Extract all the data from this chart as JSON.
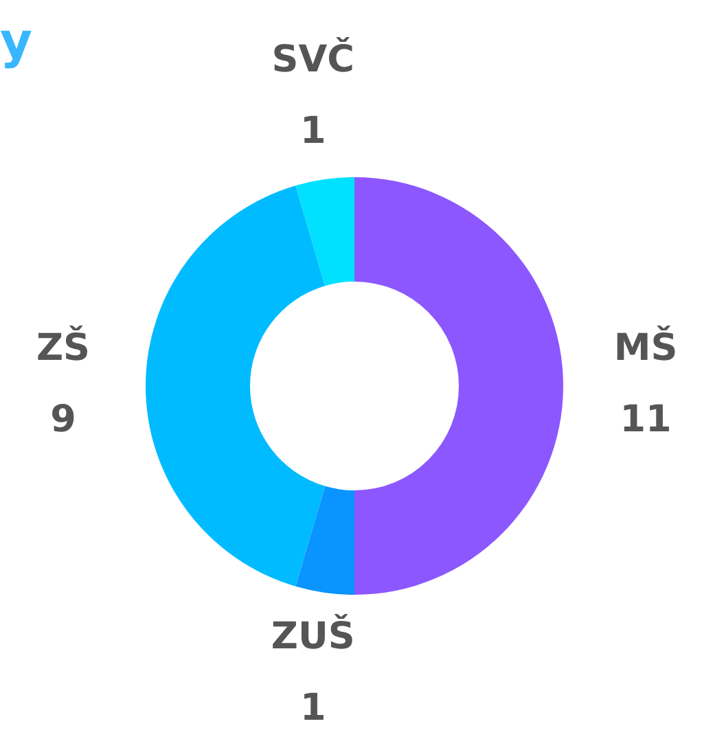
{
  "chart_data": {
    "type": "donut",
    "title": "y",
    "categories": [
      "MŠ",
      "ZUŠ",
      "ZŠ",
      "SVČ"
    ],
    "values": [
      11,
      1,
      9,
      1
    ],
    "colors": [
      "#8c57ff",
      "#0a94ff",
      "#00bbff",
      "#00e0ff"
    ],
    "data_labels": true,
    "legend": false
  }
}
